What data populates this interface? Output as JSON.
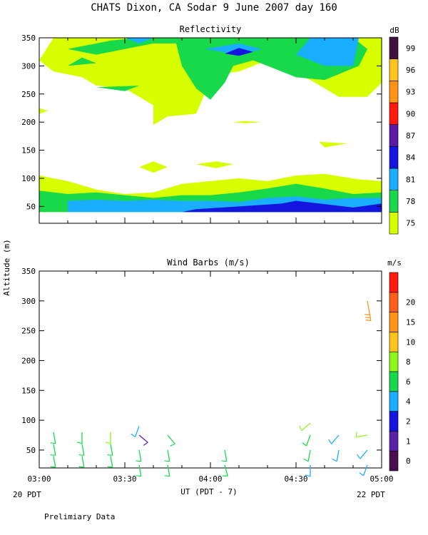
{
  "title": "CHATS Dixon, CA  Sodar   9 June 2007  day 160",
  "footer_note": "Prelimiary Data",
  "shared_ylabel": "Altitude (m)",
  "xlabel": "UT  (PDT - 7)",
  "date_left": "20 PDT",
  "date_right": "22 PDT",
  "colors": {
    "white": "#ffffff",
    "black": "#000000"
  },
  "chart_data": [
    {
      "type": "heatmap",
      "title": "Reflectivity",
      "colorbar_unit": "dB",
      "x": [
        "03:00",
        "03:30",
        "04:00",
        "04:30",
        "05:00"
      ],
      "x_minutes": [
        0,
        30,
        60,
        90,
        120
      ],
      "xlim_minutes": [
        0,
        120
      ],
      "ylim": [
        20,
        350
      ],
      "yticks": [
        50,
        100,
        150,
        200,
        250,
        300,
        350
      ],
      "colorbar": [
        {
          "label": "75",
          "color": "#d7ff00"
        },
        {
          "label": "78",
          "color": "#18d94a"
        },
        {
          "label": "81",
          "color": "#1aaeff"
        },
        {
          "label": "84",
          "color": "#1515e0"
        },
        {
          "label": "87",
          "color": "#5b19a8"
        },
        {
          "label": "90",
          "color": "#ff1a0d"
        },
        {
          "label": "93",
          "color": "#ff9418"
        },
        {
          "label": "96",
          "color": "#ffc41b"
        },
        {
          "label": "99",
          "color": "#42123e"
        }
      ],
      "regions": [
        {
          "level": 0,
          "points": [
            [
              0,
              40
            ],
            [
              120,
              40
            ],
            [
              120,
              95
            ],
            [
              112,
              98
            ],
            [
              100,
              108
            ],
            [
              90,
              105
            ],
            [
              80,
              95
            ],
            [
              70,
              100
            ],
            [
              60,
              95
            ],
            [
              50,
              90
            ],
            [
              40,
              75
            ],
            [
              30,
              72
            ],
            [
              20,
              80
            ],
            [
              10,
              95
            ],
            [
              0,
              105
            ]
          ]
        },
        {
          "level": 1,
          "points": [
            [
              0,
              40
            ],
            [
              120,
              40
            ],
            [
              120,
              75
            ],
            [
              110,
              72
            ],
            [
              100,
              82
            ],
            [
              90,
              90
            ],
            [
              80,
              82
            ],
            [
              70,
              75
            ],
            [
              60,
              70
            ],
            [
              50,
              70
            ],
            [
              40,
              65
            ],
            [
              30,
              70
            ],
            [
              20,
              75
            ],
            [
              10,
              72
            ],
            [
              0,
              78
            ]
          ]
        },
        {
          "level": 2,
          "points": [
            [
              10,
              40
            ],
            [
              120,
              40
            ],
            [
              120,
              65
            ],
            [
              110,
              65
            ],
            [
              100,
              62
            ],
            [
              90,
              68
            ],
            [
              80,
              65
            ],
            [
              70,
              58
            ],
            [
              60,
              60
            ],
            [
              50,
              60
            ],
            [
              40,
              62
            ],
            [
              30,
              60
            ],
            [
              20,
              62
            ],
            [
              10,
              60
            ]
          ]
        },
        {
          "level": 3,
          "points": [
            [
              35,
              40
            ],
            [
              50,
              40
            ],
            [
              55,
              45
            ],
            [
              70,
              50
            ],
            [
              85,
              55
            ],
            [
              90,
              60
            ],
            [
              110,
              48
            ],
            [
              120,
              55
            ],
            [
              120,
              40
            ],
            [
              30,
              40
            ]
          ]
        },
        {
          "level": 0,
          "points": [
            [
              0,
              310
            ],
            [
              5,
              350
            ],
            [
              120,
              350
            ],
            [
              120,
              270
            ],
            [
              115,
              245
            ],
            [
              105,
              245
            ],
            [
              95,
              275
            ],
            [
              80,
              310
            ],
            [
              70,
              290
            ],
            [
              62,
              285
            ],
            [
              58,
              250
            ],
            [
              55,
              215
            ],
            [
              45,
              210
            ],
            [
              40,
              195
            ],
            [
              40,
              230
            ],
            [
              30,
              260
            ],
            [
              20,
              265
            ],
            [
              15,
              280
            ],
            [
              5,
              290
            ]
          ]
        },
        {
          "level": 0,
          "points": [
            [
              0,
              225
            ],
            [
              3,
              220
            ],
            [
              0,
              215
            ]
          ]
        },
        {
          "level": 0,
          "points": [
            [
              98,
              165
            ],
            [
              100,
              155
            ],
            [
              108,
              162
            ]
          ]
        },
        {
          "level": 0,
          "points": [
            [
              35,
              120
            ],
            [
              40,
              110
            ],
            [
              45,
              120
            ],
            [
              40,
              130
            ]
          ]
        },
        {
          "level": 0,
          "points": [
            [
              55,
              125
            ],
            [
              62,
              118
            ],
            [
              68,
              125
            ],
            [
              62,
              130
            ]
          ]
        },
        {
          "level": 0,
          "points": [
            [
              68,
              200
            ],
            [
              72,
              198
            ],
            [
              78,
              200
            ],
            [
              72,
              202
            ]
          ]
        },
        {
          "level": 1,
          "points": [
            [
              10,
              330
            ],
            [
              25,
              345
            ],
            [
              35,
              350
            ],
            [
              110,
              350
            ],
            [
              115,
              330
            ],
            [
              112,
              300
            ],
            [
              100,
              275
            ],
            [
              90,
              280
            ],
            [
              80,
              300
            ],
            [
              75,
              310
            ],
            [
              68,
              300
            ],
            [
              65,
              270
            ],
            [
              60,
              240
            ],
            [
              55,
              260
            ],
            [
              50,
              300
            ],
            [
              48,
              340
            ],
            [
              40,
              340
            ],
            [
              30,
              330
            ],
            [
              20,
              320
            ]
          ]
        },
        {
          "level": 2,
          "points": [
            [
              30,
              350
            ],
            [
              40,
              350
            ],
            [
              35,
              340
            ]
          ]
        },
        {
          "level": 2,
          "points": [
            [
              58,
              330
            ],
            [
              70,
              340
            ],
            [
              78,
              330
            ],
            [
              70,
              320
            ]
          ]
        },
        {
          "level": 2,
          "points": [
            [
              95,
              350
            ],
            [
              112,
              350
            ],
            [
              110,
              300
            ],
            [
              100,
              300
            ],
            [
              90,
              320
            ]
          ]
        },
        {
          "level": 3,
          "points": [
            [
              65,
              322
            ],
            [
              70,
              332
            ],
            [
              75,
              325
            ],
            [
              70,
              318
            ]
          ]
        },
        {
          "level": 1,
          "points": [
            [
              10,
              300
            ],
            [
              15,
              315
            ],
            [
              20,
              305
            ]
          ]
        },
        {
          "level": 1,
          "points": [
            [
              20,
              262
            ],
            [
              30,
              255
            ],
            [
              35,
              265
            ]
          ]
        }
      ]
    },
    {
      "type": "scatter",
      "title": "Wind Barbs (m/s)",
      "colorbar_unit": "m/s",
      "x": [
        "03:00",
        "03:30",
        "04:00",
        "04:30",
        "05:00"
      ],
      "x_minutes": [
        0,
        30,
        60,
        90,
        120
      ],
      "xlim_minutes": [
        0,
        120
      ],
      "ylim": [
        20,
        350
      ],
      "yticks": [
        50,
        100,
        150,
        200,
        250,
        300,
        350
      ],
      "colorbar": [
        {
          "label": "0",
          "color": "#4a0e4f"
        },
        {
          "label": "1",
          "color": "#5b1fa8"
        },
        {
          "label": "2",
          "color": "#1515e0"
        },
        {
          "label": "4",
          "color": "#1aaeff"
        },
        {
          "label": "6",
          "color": "#18d94a"
        },
        {
          "label": "8",
          "color": "#8ff51a"
        },
        {
          "label": "10",
          "color": "#ffc41b"
        },
        {
          "label": "15",
          "color": "#ff9418"
        },
        {
          "label": "20",
          "color": "#ff5e1a"
        },
        {
          "label": "",
          "color": "#ff1a0d"
        }
      ],
      "barbs": [
        {
          "t": 5,
          "alt": 40,
          "dir": 170,
          "speed": 5,
          "color": "#18d94a"
        },
        {
          "t": 5,
          "alt": 60,
          "dir": 170,
          "speed": 5,
          "color": "#18d94a"
        },
        {
          "t": 5,
          "alt": 80,
          "dir": 170,
          "speed": 5,
          "color": "#18d94a"
        },
        {
          "t": 15,
          "alt": 40,
          "dir": 170,
          "speed": 5,
          "color": "#18d94a"
        },
        {
          "t": 15,
          "alt": 60,
          "dir": 170,
          "speed": 5,
          "color": "#18d94a"
        },
        {
          "t": 15,
          "alt": 80,
          "dir": 180,
          "speed": 5,
          "color": "#18d94a"
        },
        {
          "t": 25,
          "alt": 40,
          "dir": 170,
          "speed": 5,
          "color": "#18d94a"
        },
        {
          "t": 25,
          "alt": 60,
          "dir": 170,
          "speed": 5,
          "color": "#18d94a"
        },
        {
          "t": 25,
          "alt": 80,
          "dir": 180,
          "speed": 7,
          "color": "#8ff51a"
        },
        {
          "t": 35,
          "alt": 25,
          "dir": 170,
          "speed": 5,
          "color": "#18d94a"
        },
        {
          "t": 35,
          "alt": 50,
          "dir": 170,
          "speed": 5,
          "color": "#18d94a"
        },
        {
          "t": 35,
          "alt": 75,
          "dir": 130,
          "speed": 1,
          "color": "#5b1fa8"
        },
        {
          "t": 35,
          "alt": 90,
          "dir": 200,
          "speed": 3,
          "color": "#1aaeff"
        },
        {
          "t": 45,
          "alt": 25,
          "dir": 170,
          "speed": 5,
          "color": "#18d94a"
        },
        {
          "t": 45,
          "alt": 50,
          "dir": 170,
          "speed": 5,
          "color": "#18d94a"
        },
        {
          "t": 45,
          "alt": 75,
          "dir": 140,
          "speed": 5,
          "color": "#18d94a"
        },
        {
          "t": 65,
          "alt": 25,
          "dir": 165,
          "speed": 5,
          "color": "#18d94a"
        },
        {
          "t": 65,
          "alt": 50,
          "dir": 170,
          "speed": 5,
          "color": "#18d94a"
        },
        {
          "t": 95,
          "alt": 25,
          "dir": 180,
          "speed": 3,
          "color": "#1aaeff"
        },
        {
          "t": 95,
          "alt": 50,
          "dir": 190,
          "speed": 5,
          "color": "#18d94a"
        },
        {
          "t": 95,
          "alt": 75,
          "dir": 200,
          "speed": 5,
          "color": "#18d94a"
        },
        {
          "t": 95,
          "alt": 95,
          "dir": 230,
          "speed": 7,
          "color": "#8ff51a"
        },
        {
          "t": 105,
          "alt": 50,
          "dir": 190,
          "speed": 3,
          "color": "#1aaeff"
        },
        {
          "t": 105,
          "alt": 75,
          "dir": 220,
          "speed": 3,
          "color": "#1aaeff"
        },
        {
          "t": 115,
          "alt": 25,
          "dir": 200,
          "speed": 3,
          "color": "#1aaeff"
        },
        {
          "t": 115,
          "alt": 50,
          "dir": 220,
          "speed": 3,
          "color": "#1aaeff"
        },
        {
          "t": 115,
          "alt": 75,
          "dir": 260,
          "speed": 6,
          "color": "#8ff51a"
        },
        {
          "t": 115,
          "alt": 300,
          "dir": 170,
          "speed": 15,
          "color": "#ff9418"
        }
      ]
    }
  ]
}
